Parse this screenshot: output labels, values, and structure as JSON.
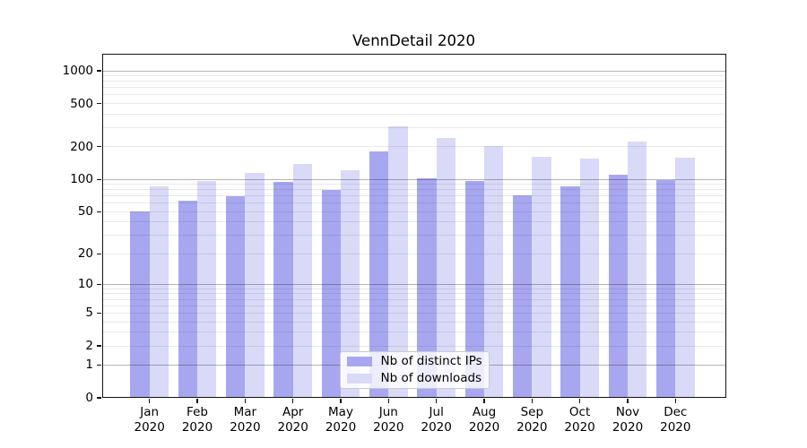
{
  "chart_data": {
    "type": "bar",
    "title": "VennDetail 2020",
    "categories": [
      "Jan 2020",
      "Feb 2020",
      "Mar 2020",
      "Apr 2020",
      "May 2020",
      "Jun 2020",
      "Jul 2020",
      "Aug 2020",
      "Sep 2020",
      "Oct 2020",
      "Nov 2020",
      "Dec 2020"
    ],
    "series": [
      {
        "name": "Nb of distinct IPs",
        "color": "#a7a7f0",
        "values": [
          50,
          63,
          70,
          94,
          80,
          180,
          103,
          97,
          71,
          87,
          110,
          98
        ]
      },
      {
        "name": "Nb of downloads",
        "color": "#d9d9f8",
        "values": [
          87,
          97,
          115,
          138,
          121,
          310,
          241,
          202,
          163,
          155,
          225,
          159
        ]
      }
    ],
    "xlabel": "",
    "ylabel": "",
    "yscale": "log1p",
    "ylim": [
      0,
      1434
    ],
    "yticks": {
      "values": [
        0,
        1,
        2,
        5,
        10,
        20,
        50,
        100,
        200,
        500,
        1000
      ],
      "labels": [
        "0",
        "1",
        "2",
        "5",
        "10",
        "20",
        "50",
        "100",
        "200",
        "500",
        "1000"
      ]
    },
    "grid": {
      "enabled": "both",
      "major_values": [
        1,
        10,
        100,
        1000
      ],
      "minor_values": [
        2,
        3,
        4,
        5,
        6,
        7,
        8,
        9,
        20,
        30,
        40,
        50,
        60,
        70,
        80,
        90,
        200,
        300,
        400,
        500,
        600,
        700,
        800,
        900
      ]
    },
    "legend": {
      "position": "lower center",
      "items": [
        "Nb of distinct IPs",
        "Nb of downloads"
      ]
    }
  }
}
